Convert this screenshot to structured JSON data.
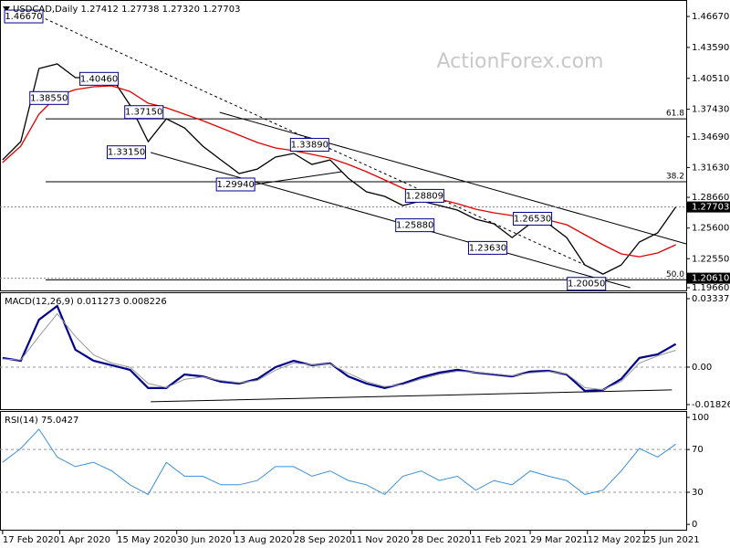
{
  "chart_data": [
    {
      "type": "line",
      "title": "USDCAD,Daily  1.27412 1.27738 1.27320 1.27703",
      "watermark": "ActionForex.com",
      "x": [
        "2020-02-17",
        "2020-03-02",
        "2020-03-16",
        "2020-03-30",
        "2020-04-13",
        "2020-04-27",
        "2020-05-11",
        "2020-05-25",
        "2020-06-08",
        "2020-06-22",
        "2020-07-06",
        "2020-07-20",
        "2020-08-03",
        "2020-08-17",
        "2020-08-31",
        "2020-09-14",
        "2020-09-28",
        "2020-10-12",
        "2020-10-26",
        "2020-11-09",
        "2020-11-23",
        "2020-12-07",
        "2020-12-21",
        "2021-01-04",
        "2021-01-18",
        "2021-02-01",
        "2021-02-15",
        "2021-03-01",
        "2021-03-15",
        "2021-03-29",
        "2021-04-12",
        "2021-04-26",
        "2021-05-10",
        "2021-05-24",
        "2021-06-07",
        "2021-06-21",
        "2021-07-05",
        "2021-07-19"
      ],
      "series": [
        {
          "color": "#000000",
          "values": [
            1.3239,
            1.3421,
            1.4149,
            1.4194,
            1.4058,
            1.4058,
            1.4058,
            1.3785,
            1.3421,
            1.3648,
            1.3558,
            1.3376,
            1.3239,
            1.3103,
            1.3148,
            1.3267,
            1.3303,
            1.3194,
            1.3239,
            1.3057,
            1.2921,
            1.2876,
            1.2785,
            1.283,
            1.2785,
            1.2739,
            1.2648,
            1.2603,
            1.2466,
            1.2603,
            1.2603,
            1.2466,
            1.2193,
            1.2102,
            1.2193,
            1.2421,
            1.2512,
            1.27703
          ]
        },
        {
          "color": "#e00000",
          "values": [
            1.3212,
            1.3376,
            1.3694,
            1.3876,
            1.3939,
            1.3967,
            1.3976,
            1.3921,
            1.3803,
            1.3758,
            1.3694,
            1.363,
            1.3558,
            1.3485,
            1.3412,
            1.3358,
            1.333,
            1.3294,
            1.3257,
            1.3194,
            1.3121,
            1.3039,
            1.2957,
            1.2894,
            1.2848,
            1.2803,
            1.2748,
            1.2712,
            1.2685,
            1.2667,
            1.2639,
            1.2594,
            1.2494,
            1.2394,
            1.2303,
            1.2275,
            1.2312,
            1.2394
          ]
        }
      ],
      "xlim": [
        "2020-02-15",
        "2021-07-27"
      ],
      "xticks": [
        {
          "value": "2020-02-17",
          "label": "17 Feb 2020"
        },
        {
          "value": "2020-04-01",
          "label": "1 Apr 2020"
        },
        {
          "value": "2020-05-15",
          "label": "15 May 2020"
        },
        {
          "value": "2020-06-30",
          "label": "30 Jun 2020"
        },
        {
          "value": "2020-08-13",
          "label": "13 Aug 2020"
        },
        {
          "value": "2020-09-28",
          "label": "28 Sep 2020"
        },
        {
          "value": "2020-11-11",
          "label": "11 Nov 2020"
        },
        {
          "value": "2020-12-28",
          "label": "28 Dec 2020"
        },
        {
          "value": "2021-02-11",
          "label": "11 Feb 2021"
        },
        {
          "value": "2021-03-29",
          "label": "29 Mar 2021"
        },
        {
          "value": "2021-05-12",
          "label": "12 May 2021"
        },
        {
          "value": "2021-06-25",
          "label": "25 Jun 2021"
        }
      ],
      "ylim": [
        1.1939,
        1.4831
      ],
      "yticks": [
        {
          "value": 1.4667,
          "label": "1.46670"
        },
        {
          "value": 1.4359,
          "label": "1.43590"
        },
        {
          "value": 1.4051,
          "label": "1.40510"
        },
        {
          "value": 1.3743,
          "label": "1.37430"
        },
        {
          "value": 1.3469,
          "label": "1.34690"
        },
        {
          "value": 1.3163,
          "label": "1.31630"
        },
        {
          "value": 1.2866,
          "label": "1.28660"
        },
        {
          "value": 1.256,
          "label": "1.25600"
        },
        {
          "value": 1.2255,
          "label": "1.22550"
        },
        {
          "value": 1.1966,
          "label": "1.19660"
        }
      ],
      "price_tags": [
        1.27703,
        {
          "value": 1.2061,
          "label": "1.20610"
        }
      ],
      "fib_levels": [
        {
          "value": 1.3648,
          "label": "61.8"
        },
        {
          "value": 1.3021,
          "label": "38.2"
        },
        {
          "value": 1.2045,
          "label": "50.0"
        }
      ],
      "annotations": [
        {
          "label": "1.46670",
          "value": 1.4667,
          "date": "2020-03-19",
          "side": "left"
        },
        {
          "label": "1.38550",
          "value": 1.3855,
          "date": "2020-03-09",
          "side": "right"
        },
        {
          "label": "1.40460",
          "value": 1.4046,
          "date": "2020-05-16",
          "side": "left"
        },
        {
          "label": "1.37150",
          "value": 1.3715,
          "date": "2020-05-21",
          "side": "right"
        },
        {
          "label": "1.33150",
          "value": 1.3315,
          "date": "2020-06-06",
          "side": "left"
        },
        {
          "label": "1.29940",
          "value": 1.2994,
          "date": "2020-08-29",
          "side": "left"
        },
        {
          "label": "1.33890",
          "value": 1.3389,
          "date": "2020-10-25",
          "side": "left"
        },
        {
          "label": "1.28809",
          "value": 1.2881,
          "date": "2020-12-23",
          "side": "right"
        },
        {
          "label": "1.25880",
          "value": 1.2588,
          "date": "2021-01-14",
          "side": "left"
        },
        {
          "label": "1.23630",
          "value": 1.2363,
          "date": "2021-03-11",
          "side": "left"
        },
        {
          "label": "1.26530",
          "value": 1.2653,
          "date": "2021-03-16",
          "side": "right"
        },
        {
          "label": "1.20050",
          "value": 1.2005,
          "date": "2021-05-26",
          "side": "left"
        }
      ],
      "trendlines": [
        {
          "from": {
            "date": "2020-03-17",
            "value": 1.4667
          },
          "to": {
            "date": "2021-05-10",
            "value": 1.2193
          },
          "dashed": true
        },
        {
          "from": {
            "date": "2020-08-02",
            "value": 1.3712
          },
          "to": {
            "date": "2021-07-27",
            "value": 1.2403
          },
          "dashed": false
        },
        {
          "from": {
            "date": "2020-06-10",
            "value": 1.3312
          },
          "to": {
            "date": "2021-06-14",
            "value": 1.1966
          },
          "dashed": false
        },
        {
          "from": {
            "date": "2020-08-29",
            "value": 1.2994
          },
          "to": {
            "date": "2020-11-04",
            "value": 1.3121
          },
          "dashed": false
        }
      ]
    },
    {
      "type": "line",
      "title": "MACD(12,26,9) 0.011273 0.008226",
      "series": [
        {
          "color": "#00008b",
          "width": 2.2,
          "values": [
            0.0045,
            0.0031,
            0.0231,
            0.0298,
            0.0085,
            0.0031,
            0.0009,
            -0.0013,
            -0.0102,
            -0.0102,
            -0.0036,
            -0.0045,
            -0.0071,
            -0.008,
            -0.0058,
            0.0,
            0.0031,
            0.0009,
            0.0018,
            -0.0045,
            -0.008,
            -0.0102,
            -0.008,
            -0.0049,
            -0.0027,
            -0.0013,
            -0.0027,
            -0.0036,
            -0.0045,
            -0.0022,
            -0.0018,
            -0.0036,
            -0.0116,
            -0.0111,
            -0.0058,
            0.0045,
            0.0062,
            0.011273
          ]
        },
        {
          "color": "#999999",
          "width": 1,
          "values": [
            0.004,
            0.0035,
            0.015,
            0.026,
            0.015,
            0.006,
            0.002,
            0.0,
            -0.008,
            -0.01,
            -0.006,
            -0.0048,
            -0.0065,
            -0.0076,
            -0.0065,
            -0.0015,
            0.002,
            0.0012,
            0.0015,
            -0.003,
            -0.007,
            -0.0095,
            -0.0085,
            -0.0058,
            -0.0035,
            -0.002,
            -0.0025,
            -0.0033,
            -0.0042,
            -0.0028,
            -0.0022,
            -0.0032,
            -0.01,
            -0.011,
            -0.007,
            0.002,
            0.0055,
            0.008226
          ]
        }
      ],
      "ylim": [
        -0.0205,
        0.0365
      ],
      "yticks": [
        0.03337,
        {
          "value": 0,
          "label": "0.00"
        },
        -0.018262
      ],
      "level_lines": [
        0
      ],
      "trendlines": [
        {
          "from": {
            "date": "2020-06-10",
            "value": -0.0169
          },
          "to": {
            "date": "2021-07-16",
            "value": -0.0111
          },
          "dashed": false
        }
      ]
    },
    {
      "type": "line",
      "title": "RSI(14) 75.0427",
      "series": [
        {
          "color": "#3b8fd9",
          "width": 1,
          "values": [
            58,
            71,
            89,
            63,
            54,
            58,
            50,
            37,
            28,
            58,
            45,
            45,
            37,
            37,
            41,
            54,
            54,
            45,
            50,
            41,
            37,
            28,
            45,
            50,
            41,
            45,
            32,
            41,
            37,
            50,
            45,
            41,
            28,
            32,
            50,
            71,
            63,
            75.0427
          ]
        }
      ],
      "ylim": [
        -5,
        106
      ],
      "yticks": [
        100,
        70,
        30,
        0
      ],
      "level_lines": [
        70,
        30
      ]
    }
  ]
}
